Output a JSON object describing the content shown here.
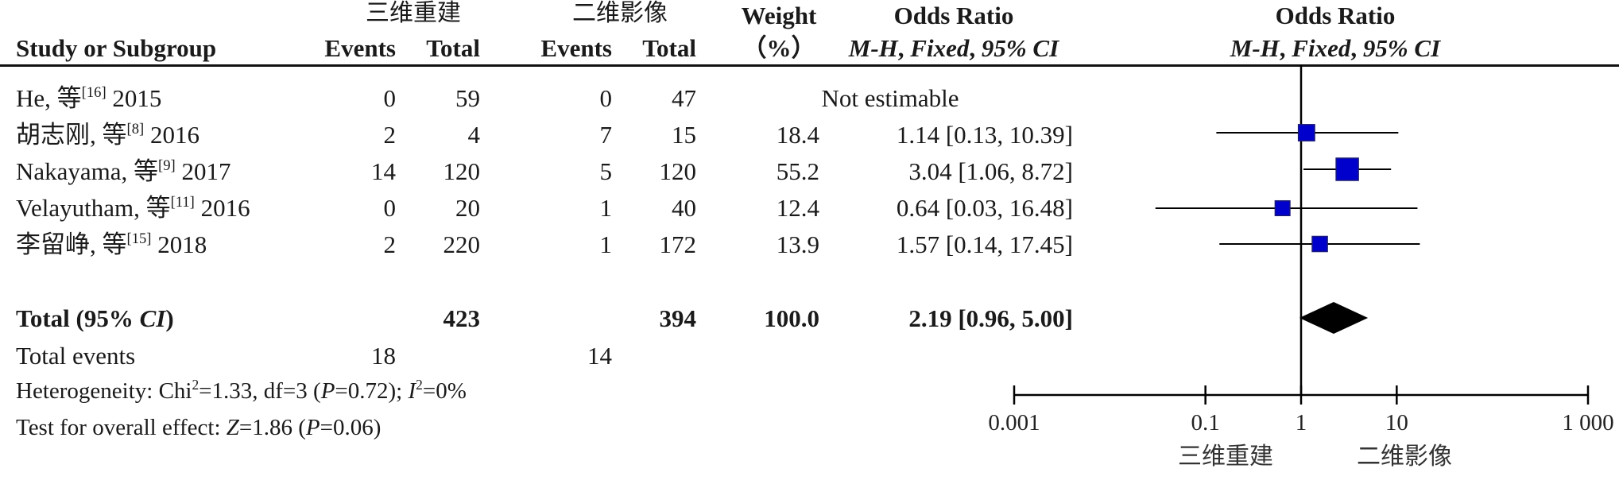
{
  "header": {
    "group1": "三维重建",
    "group2": "二维影像",
    "col_study": "Study or Subgroup",
    "col_events": "Events",
    "col_total": "Total",
    "col_weight_1": "Weight",
    "col_weight_2": "（%）",
    "col_or_title": "Odds Ratio",
    "col_or_mh": "M-H",
    "col_or_fixed": "Fixed",
    "col_or_ci": "95% CI",
    "plot_title": "Odds Ratio"
  },
  "studies": [
    {
      "author": "He, 等",
      "ref": "[16]",
      "year": "2015",
      "e1": "0",
      "t1": "59",
      "e2": "0",
      "t2": "47",
      "weight": "",
      "ci": "Not estimable"
    },
    {
      "author": "胡志刚, 等",
      "ref": "[8]",
      "year": "2016",
      "e1": "2",
      "t1": "4",
      "e2": "7",
      "t2": "15",
      "weight": "18.4",
      "ci": "1.14 [0.13, 10.39]"
    },
    {
      "author": "Nakayama, 等",
      "ref": "[9]",
      "year": "2017",
      "e1": "14",
      "t1": "120",
      "e2": "5",
      "t2": "120",
      "weight": "55.2",
      "ci": "3.04 [1.06, 8.72]"
    },
    {
      "author": "Velayutham, 等",
      "ref": "[11]",
      "year": "2016",
      "e1": "0",
      "t1": "20",
      "e2": "1",
      "t2": "40",
      "weight": "12.4",
      "ci": "0.64 [0.03, 16.48]"
    },
    {
      "author": "李留峥, 等",
      "ref": "[15]",
      "year": "2018",
      "e1": "2",
      "t1": "220",
      "e2": "1",
      "t2": "172",
      "weight": "13.9",
      "ci": "1.57 [0.14, 17.45]"
    }
  ],
  "total": {
    "label_a": "Total (95% ",
    "label_ci": "CI",
    "label_b": ")",
    "t1": "423",
    "t2": "394",
    "weight": "100.0",
    "ci": "2.19 [0.96, 5.00]",
    "events_label": "Total events",
    "e1": "18",
    "e2": "14"
  },
  "stats": {
    "heterogeneity_a": "Heterogeneity: Chi",
    "chi_sup": "2",
    "heterogeneity_b": "=1.33, df=3 (",
    "p_sym": "P",
    "heterogeneity_c": "=0.72); ",
    "i_sym": "I",
    "i_sup": "2",
    "heterogeneity_d": "=0%",
    "overall_a": "Test for overall effect: ",
    "z_sym": "Z",
    "overall_b": "=1.86 (",
    "overall_p": "P",
    "overall_c": "=0.06)"
  },
  "chart_data": {
    "type": "scatter",
    "xscale": "log",
    "xlim": [
      0.001,
      1000
    ],
    "xticks": [
      0.001,
      0.1,
      1,
      10,
      1000
    ],
    "xtick_labels": [
      "0.001",
      "0.1",
      "1",
      "10",
      "1 000"
    ],
    "favours_left": "三维重建",
    "favours_right": "二维影像",
    "colors": {
      "study_marker": "#0000cc",
      "study_marker_edge": "#1a1a7a",
      "total_diamond": "#000000"
    },
    "studies": [
      {
        "or": 1.14,
        "lo": 0.13,
        "hi": 10.39,
        "weight": 18.4
      },
      {
        "or": 3.04,
        "lo": 1.06,
        "hi": 8.72,
        "weight": 55.2
      },
      {
        "or": 0.64,
        "lo": 0.03,
        "hi": 16.48,
        "weight": 12.4
      },
      {
        "or": 1.57,
        "lo": 0.14,
        "hi": 17.45,
        "weight": 13.9
      }
    ],
    "total": {
      "or": 2.19,
      "lo": 0.96,
      "hi": 5.0
    }
  }
}
